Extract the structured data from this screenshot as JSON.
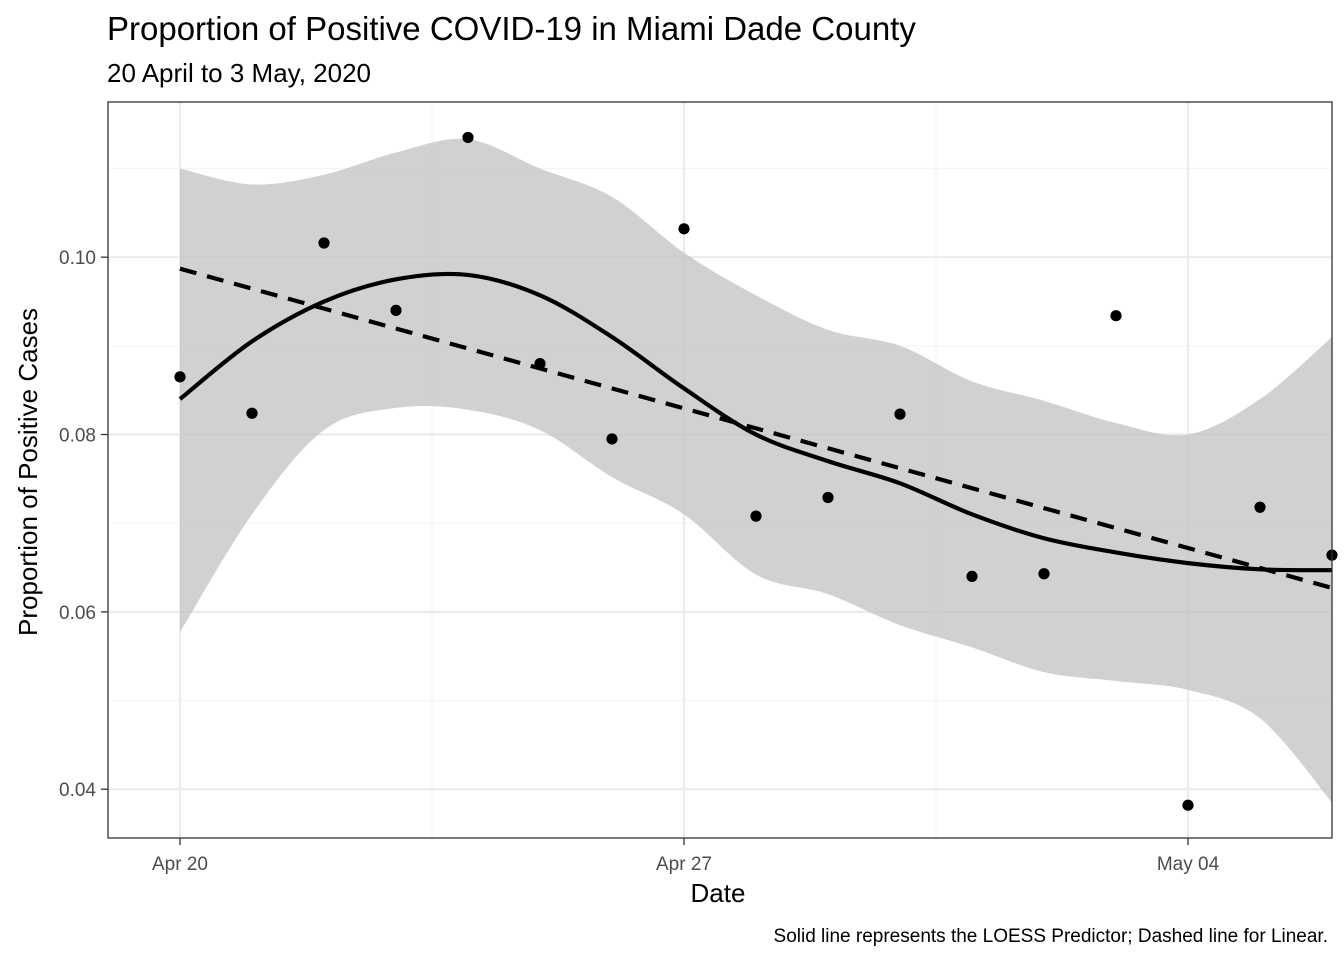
{
  "chart_data": {
    "type": "scatter",
    "title": "Proportion of Positive COVID-19 in Miami Dade County",
    "subtitle": "20 April to 3 May, 2020",
    "xlabel": "Date",
    "ylabel": "Proportion of Positive Cases",
    "caption": "Solid line represents the LOESS Predictor; Dashed line for Linear.",
    "x_ticks": [
      {
        "value": "2020-04-20",
        "label": "Apr 20"
      },
      {
        "value": "2020-04-27",
        "label": "Apr 27"
      },
      {
        "value": "2020-05-04",
        "label": "May 04"
      }
    ],
    "y_ticks": [
      {
        "value": 0.04,
        "label": "0.04"
      },
      {
        "value": 0.06,
        "label": "0.06"
      },
      {
        "value": 0.08,
        "label": "0.08"
      },
      {
        "value": 0.1,
        "label": "0.10"
      }
    ],
    "xlim": [
      "2020-04-19",
      "2020-05-06"
    ],
    "ylim": [
      0.0345,
      0.1175
    ],
    "grid": true,
    "points": [
      {
        "x": "2020-04-20",
        "y": 0.0865
      },
      {
        "x": "2020-04-21",
        "y": 0.0824
      },
      {
        "x": "2020-04-22",
        "y": 0.1016
      },
      {
        "x": "2020-04-23",
        "y": 0.094
      },
      {
        "x": "2020-04-24",
        "y": 0.1135
      },
      {
        "x": "2020-04-25",
        "y": 0.088
      },
      {
        "x": "2020-04-26",
        "y": 0.0795
      },
      {
        "x": "2020-04-27",
        "y": 0.1032
      },
      {
        "x": "2020-04-28",
        "y": 0.0708
      },
      {
        "x": "2020-04-29",
        "y": 0.0729
      },
      {
        "x": "2020-04-30",
        "y": 0.0823
      },
      {
        "x": "2020-05-01",
        "y": 0.064
      },
      {
        "x": "2020-05-02",
        "y": 0.0643
      },
      {
        "x": "2020-05-03",
        "y": 0.0934
      },
      {
        "x": "2020-05-04",
        "y": 0.0382
      },
      {
        "x": "2020-05-05",
        "y": 0.0718
      },
      {
        "x": "2020-05-06",
        "y": 0.0664
      }
    ],
    "loess": [
      {
        "x": "2020-04-20",
        "y": 0.084,
        "lower": 0.0577,
        "upper": 0.11
      },
      {
        "x": "2020-04-21",
        "y": 0.0905,
        "lower": 0.071,
        "upper": 0.1082
      },
      {
        "x": "2020-04-22",
        "y": 0.095,
        "lower": 0.0805,
        "upper": 0.1093
      },
      {
        "x": "2020-04-23",
        "y": 0.0975,
        "lower": 0.083,
        "upper": 0.1118
      },
      {
        "x": "2020-04-24",
        "y": 0.098,
        "lower": 0.0828,
        "upper": 0.1133
      },
      {
        "x": "2020-04-25",
        "y": 0.0957,
        "lower": 0.0805,
        "upper": 0.11
      },
      {
        "x": "2020-04-26",
        "y": 0.091,
        "lower": 0.0752,
        "upper": 0.1068
      },
      {
        "x": "2020-04-27",
        "y": 0.0852,
        "lower": 0.071,
        "upper": 0.1005
      },
      {
        "x": "2020-04-28",
        "y": 0.08,
        "lower": 0.0642,
        "upper": 0.0957
      },
      {
        "x": "2020-04-29",
        "y": 0.077,
        "lower": 0.062,
        "upper": 0.0918
      },
      {
        "x": "2020-04-30",
        "y": 0.0745,
        "lower": 0.0585,
        "upper": 0.09
      },
      {
        "x": "2020-05-01",
        "y": 0.071,
        "lower": 0.056,
        "upper": 0.086
      },
      {
        "x": "2020-05-02",
        "y": 0.0683,
        "lower": 0.0532,
        "upper": 0.0838
      },
      {
        "x": "2020-05-03",
        "y": 0.0667,
        "lower": 0.0522,
        "upper": 0.0813
      },
      {
        "x": "2020-05-04",
        "y": 0.0655,
        "lower": 0.0512,
        "upper": 0.08
      },
      {
        "x": "2020-05-05",
        "y": 0.0648,
        "lower": 0.048,
        "upper": 0.084
      },
      {
        "x": "2020-05-06",
        "y": 0.0647,
        "lower": 0.0385,
        "upper": 0.091
      }
    ],
    "linear": [
      {
        "x": "2020-04-20",
        "y": 0.0987
      },
      {
        "x": "2020-05-06",
        "y": 0.0627
      }
    ],
    "colors": {
      "points": "#000000",
      "loess_line": "#000000",
      "linear_line": "#000000",
      "ribbon": "#bfbfbf",
      "grid_major": "#ebebeb",
      "grid_minor": "#f5f5f5",
      "panel_border": "#333333",
      "tick_label": "#4d4d4d"
    }
  }
}
